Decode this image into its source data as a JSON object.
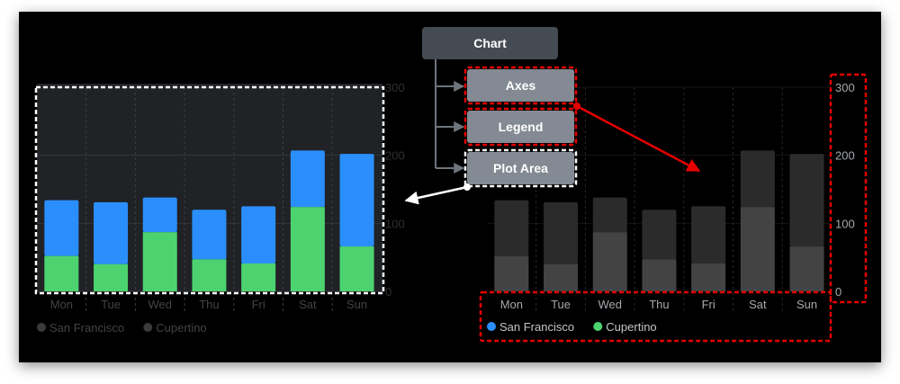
{
  "diagram": {
    "root_node": "Chart",
    "child_nodes": [
      "Axes",
      "Legend",
      "Plot Area"
    ]
  },
  "colors": {
    "san_francisco": "#2a8ffc",
    "cupertino": "#4cd370",
    "highlight": "#e60000",
    "node_fill": "#838a93",
    "root_fill": "#454b53"
  },
  "chart_data": {
    "type": "bar",
    "stacked": true,
    "categories": [
      "Mon",
      "Tue",
      "Wed",
      "Thu",
      "Fri",
      "Sat",
      "Sun"
    ],
    "series": [
      {
        "name": "Cupertino",
        "values": [
          52,
          40,
          87,
          47,
          41,
          124,
          66
        ]
      },
      {
        "name": "San Francisco",
        "values": [
          82,
          91,
          51,
          73,
          84,
          83,
          136
        ]
      }
    ],
    "ylim": [
      0,
      300
    ],
    "yticks": [
      0,
      100,
      200,
      300
    ],
    "ytick_labels": [
      "0",
      "100",
      "200",
      "300"
    ],
    "legend": [
      "San Francisco",
      "Cupertino"
    ],
    "legend_position": "bottom-left",
    "grid": true
  }
}
